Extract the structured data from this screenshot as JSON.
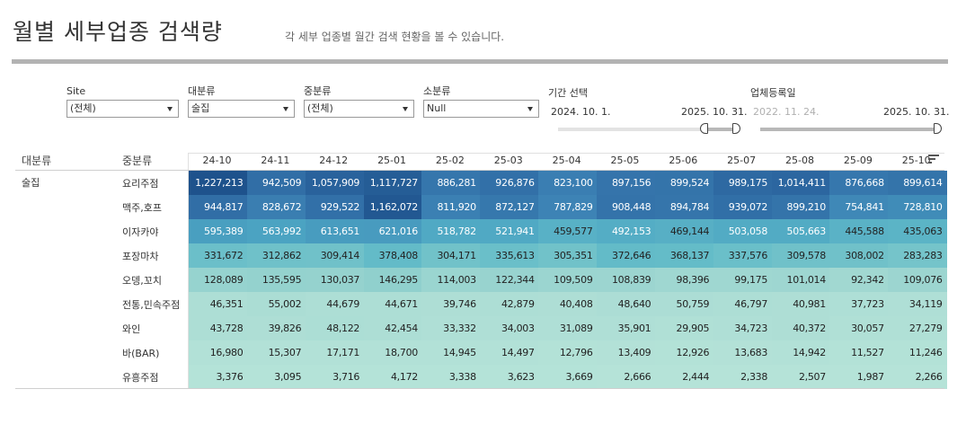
{
  "header": {
    "title": "월별 세부업종 검색량",
    "subtitle": "각 세부 업종별 월간 검색 현황을 볼 수 있습니다."
  },
  "filters": {
    "site": {
      "label": "Site",
      "value": "(전체)"
    },
    "major": {
      "label": "대분류",
      "value": "술집"
    },
    "middle": {
      "label": "중분류",
      "value": "(전체)"
    },
    "minor": {
      "label": "소분류",
      "value": "Null"
    }
  },
  "period": {
    "label": "기간 선택",
    "start": "2024. 10. 1.",
    "end": "2025. 10. 31."
  },
  "registered": {
    "label": "업체등록일",
    "start": "2022. 11. 24.",
    "end": "2025. 10. 31."
  },
  "table": {
    "col_major": "대분류",
    "col_middle": "중분류",
    "major_value": "술집",
    "months": [
      "24-10",
      "24-11",
      "24-12",
      "25-01",
      "25-02",
      "25-03",
      "25-04",
      "25-05",
      "25-06",
      "25-07",
      "25-08",
      "25-09",
      "25-10"
    ],
    "rows": [
      {
        "name": "요리주점",
        "values": [
          "1,227,213",
          "942,509",
          "1,057,909",
          "1,117,727",
          "886,281",
          "926,876",
          "823,100",
          "897,156",
          "899,524",
          "989,175",
          "1,014,411",
          "876,668",
          "899,614"
        ]
      },
      {
        "name": "맥주,호프",
        "values": [
          "944,817",
          "828,672",
          "929,522",
          "1,162,072",
          "811,920",
          "872,127",
          "787,829",
          "908,448",
          "894,784",
          "939,072",
          "899,210",
          "754,841",
          "728,810"
        ]
      },
      {
        "name": "이자카야",
        "values": [
          "595,389",
          "563,992",
          "613,651",
          "621,016",
          "518,782",
          "521,941",
          "459,577",
          "492,153",
          "469,144",
          "503,058",
          "505,663",
          "445,588",
          "435,063"
        ]
      },
      {
        "name": "포장마차",
        "values": [
          "331,672",
          "312,862",
          "309,414",
          "378,408",
          "304,171",
          "335,613",
          "305,351",
          "372,646",
          "368,137",
          "337,576",
          "309,578",
          "308,002",
          "283,283"
        ]
      },
      {
        "name": "오뎅,꼬치",
        "values": [
          "128,089",
          "135,595",
          "130,037",
          "146,295",
          "114,003",
          "122,344",
          "109,509",
          "108,839",
          "98,396",
          "99,175",
          "101,014",
          "92,342",
          "109,076"
        ]
      },
      {
        "name": "전통,민속주점",
        "values": [
          "46,351",
          "55,002",
          "44,679",
          "44,671",
          "39,746",
          "42,879",
          "40,408",
          "48,640",
          "50,759",
          "46,797",
          "40,981",
          "37,723",
          "34,119"
        ]
      },
      {
        "name": "와인",
        "values": [
          "43,728",
          "39,826",
          "48,122",
          "42,454",
          "33,332",
          "34,003",
          "31,089",
          "35,901",
          "29,905",
          "34,723",
          "40,372",
          "30,057",
          "27,279"
        ]
      },
      {
        "name": "바(BAR)",
        "values": [
          "16,980",
          "15,307",
          "17,171",
          "18,700",
          "14,945",
          "14,497",
          "12,796",
          "13,409",
          "12,926",
          "13,683",
          "14,942",
          "11,527",
          "11,246"
        ]
      },
      {
        "name": "유흥주점",
        "values": [
          "3,376",
          "3,095",
          "3,716",
          "4,172",
          "3,338",
          "3,623",
          "3,669",
          "2,666",
          "2,444",
          "2,338",
          "2,507",
          "1,987",
          "2,266"
        ]
      }
    ]
  },
  "icons": {
    "sort": "sort-icon",
    "dropdown": "caret-down-icon"
  }
}
